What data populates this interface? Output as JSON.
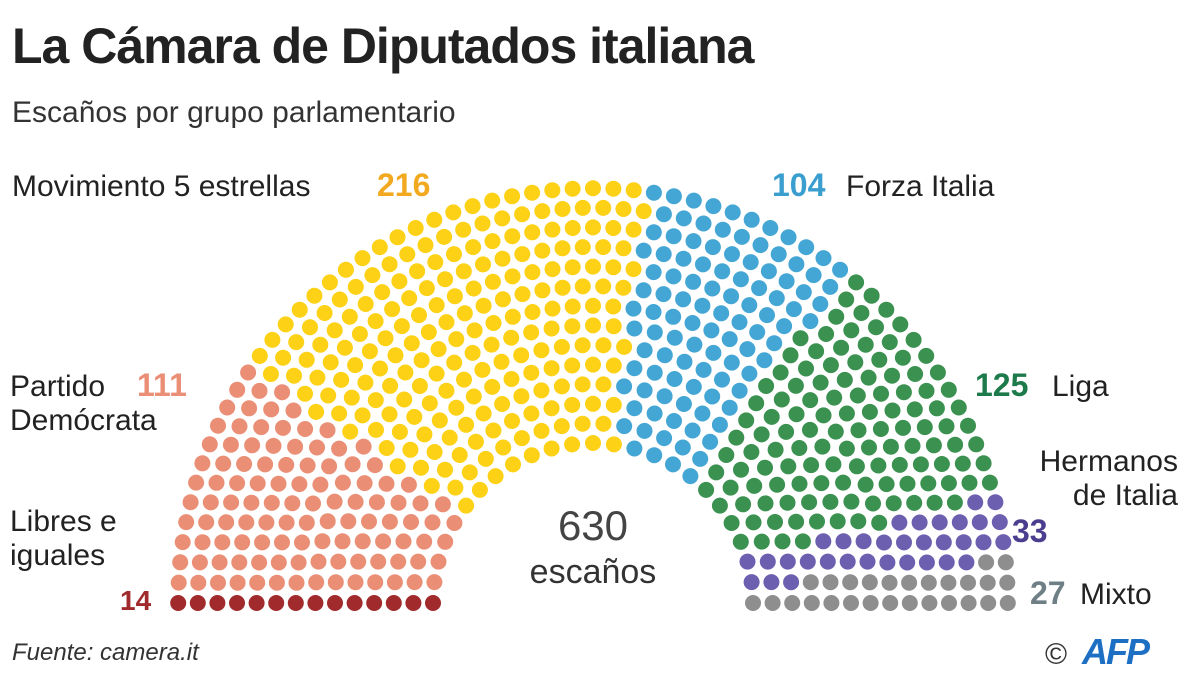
{
  "chart_data": {
    "type": "parliament",
    "title": "La Cámara de Diputados italiana",
    "subtitle": "Escaños por grupo parlamentario",
    "total": 630,
    "total_label": "escaños",
    "series": [
      {
        "name": "Libres e iguales",
        "color": "#a02a2c",
        "label_color": "#a02a2c",
        "values": [
          14
        ]
      },
      {
        "name": "Partido Demócrata",
        "color": "#ea8f76",
        "label_color": "#ea8f76",
        "values": [
          111
        ]
      },
      {
        "name": "Movimiento 5 estrellas",
        "color": "#fcd116",
        "label_color": "#f2a91f",
        "values": [
          216
        ]
      },
      {
        "name": "Forza Italia",
        "color": "#44a6d4",
        "label_color": "#3a9fcf",
        "values": [
          104
        ]
      },
      {
        "name": "Liga",
        "color": "#3a9150",
        "label_color": "#1d7a4a",
        "values": [
          125
        ]
      },
      {
        "name": "Hermanos de Italia",
        "color": "#6c5fb0",
        "label_color": "#4b3e8f",
        "values": [
          33
        ]
      },
      {
        "name": "Mixto",
        "color": "#8e8e8e",
        "label_color": "#6f7f86",
        "values": [
          27
        ]
      }
    ],
    "source": "Fuente: camera.it",
    "credit": "©",
    "logo": "AFP"
  }
}
